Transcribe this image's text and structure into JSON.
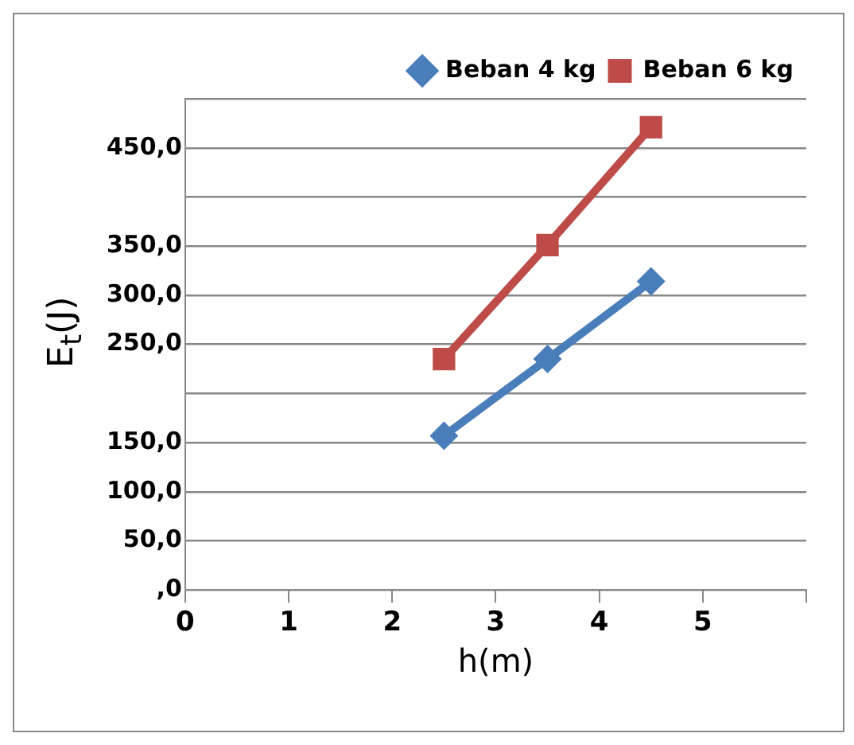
{
  "chart_data": {
    "type": "line",
    "xlabel": "h(m)",
    "ylabel": "E$_{t}$(J)",
    "xlim": [
      0,
      6
    ],
    "xticks": [
      0,
      1,
      2,
      3,
      4,
      5,
      {
        "value": 6,
        "label": null
      }
    ],
    "ylim": [
      0,
      500
    ],
    "yticks": [
      {
        "value": 0,
        "label": ",0"
      },
      {
        "value": 50,
        "label": "50,0"
      },
      {
        "value": 100,
        "label": "100,0"
      },
      {
        "value": 150,
        "label": "150,0"
      },
      {
        "value": 200,
        "label": null
      },
      {
        "value": 250,
        "label": "250,0"
      },
      {
        "value": 300,
        "label": "300,0"
      },
      {
        "value": 350,
        "label": "350,0"
      },
      {
        "value": 400,
        "label": null
      },
      {
        "value": 450,
        "label": "450,0"
      },
      {
        "value": 500,
        "label": null
      }
    ],
    "x": [
      2.5,
      3.5,
      4.5
    ],
    "series": [
      {
        "name": "Beban 4 kg",
        "color": "#4a7ebb",
        "marker": "diamond",
        "values": [
          157,
          235,
          314
        ]
      },
      {
        "name": "Beban 6 kg",
        "color": "#be4b48",
        "marker": "square",
        "values": [
          235,
          351,
          471
        ]
      }
    ],
    "grid": "y",
    "legend": "top right",
    "line_style": "solid"
  }
}
